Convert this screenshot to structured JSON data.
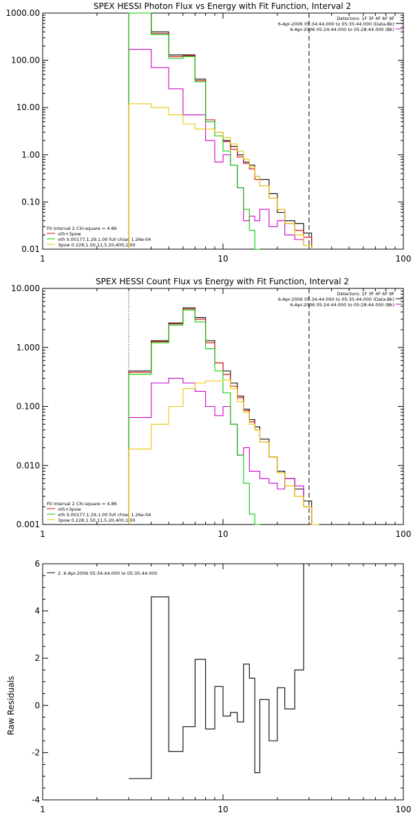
{
  "chart_data": [
    {
      "type": "line",
      "title": "SPEX HESSI Photon Flux vs Energy with Fit Function, Interval 2",
      "xscale": "log",
      "yscale": "log",
      "xlim": [
        1,
        100
      ],
      "ylim": [
        0.01,
        1000
      ],
      "x_ticks": [
        "1",
        "10",
        "100"
      ],
      "y_ticks": [
        "1000.00",
        "100.00",
        "10.00",
        "1.00",
        "0.10",
        "0.01"
      ],
      "info_lines": [
        "Detectors: 1F 3F 4F 6F 9F",
        "6-Apr-2006 05:34:44.000 to 05:35:44.000 (Data-Bk)",
        "6-Apr-2006 05:24:44.000 to 05:28:44.000 (Bk)"
      ],
      "legend_header": "Fit Interval 2   Chi-square = 4.86",
      "legend": [
        {
          "label": "vth+3pow",
          "color": "#d40000"
        },
        {
          "label": "vth 0.00177,1.29,1.00  full chian 1.26e-04",
          "color": "#00cc00"
        },
        {
          "label": "3pow 0.228,1.50,11,5.20,400,1.00",
          "color": "#e6c800"
        }
      ],
      "vlines": [
        {
          "x": 3,
          "style": "dotted"
        },
        {
          "x": 30,
          "style": "dashed"
        }
      ],
      "bin_edges": [
        3,
        4,
        5,
        6,
        7,
        8,
        9,
        10,
        11,
        12,
        13,
        14,
        15,
        16,
        18,
        20,
        22,
        25,
        28,
        31
      ],
      "series": [
        {
          "name": "Data-Bk",
          "color": "#000000",
          "values": [
            1000,
            400,
            130,
            130,
            40,
            5.5,
            3.0,
            2.0,
            1.5,
            1.0,
            0.7,
            0.6,
            0.35,
            0.3,
            0.15,
            0.06,
            0.04,
            0.035,
            0.022
          ]
        },
        {
          "name": "Bk",
          "color": "#cc00cc",
          "values": [
            170,
            70,
            25,
            7,
            7,
            2.0,
            0.7,
            1.0,
            0.6,
            0.2,
            0.04,
            0.05,
            0.04,
            0.07,
            0.03,
            0.04,
            0.02,
            0.016,
            0.012
          ]
        },
        {
          "name": "vth+3pow",
          "color": "#d40000",
          "values": [
            1000,
            370,
            120,
            125,
            37,
            5.5,
            3.0,
            1.9,
            1.3,
            0.9,
            0.65,
            0.5,
            0.3,
            0.22,
            0.12,
            0.07,
            0.035,
            0.025,
            0.018
          ]
        },
        {
          "name": "vth",
          "color": "#00cc00",
          "values": [
            1000,
            350,
            110,
            120,
            35,
            5.0,
            2.5,
            1.2,
            0.6,
            0.2,
            0.07,
            0.025,
            0.01
          ]
        },
        {
          "name": "3pow",
          "color": "#e6c800",
          "values": [
            12,
            10,
            7,
            4.5,
            3.5,
            3.5,
            3.0,
            2.3,
            1.7,
            1.2,
            0.8,
            0.55,
            0.35,
            0.22,
            0.12,
            0.07,
            0.035,
            0.02,
            0.012
          ]
        }
      ]
    },
    {
      "type": "line",
      "title": "SPEX HESSI Count Flux vs Energy with Fit Function, Interval 2",
      "xscale": "log",
      "yscale": "log",
      "xlim": [
        1,
        100
      ],
      "ylim": [
        0.001,
        10
      ],
      "x_ticks": [
        "1",
        "10",
        "100"
      ],
      "y_ticks": [
        "10.000",
        "1.000",
        "0.100",
        "0.010",
        "0.001"
      ],
      "info_lines": [
        "Detectors: 1F 3F 4F 6F 9F",
        "6-Apr-2006 05:34:44.000 to 05:35:44.000 (Data-Bk)",
        "6-Apr-2006 05:24:44.000 to 05:28:44.000 (Bk)"
      ],
      "legend_header": "Fit Interval 2   Chi-square = 4.86",
      "legend": [
        {
          "label": "vth+3pow",
          "color": "#d40000"
        },
        {
          "label": "vth 0.00177,1.29,1.00  full chian 1.26e-04",
          "color": "#00cc00"
        },
        {
          "label": "3pow 0.228,1.50,11,5.20,400,1.00",
          "color": "#e6c800"
        }
      ],
      "vlines": [
        {
          "x": 3,
          "style": "dotted"
        },
        {
          "x": 30,
          "style": "dashed"
        }
      ],
      "bin_edges": [
        3,
        4,
        5,
        6,
        7,
        8,
        9,
        10,
        11,
        12,
        13,
        14,
        15,
        16,
        18,
        20,
        22,
        25,
        28,
        31,
        34
      ],
      "series": [
        {
          "name": "Data-Bk",
          "color": "#000000",
          "values": [
            0.4,
            1.3,
            2.6,
            4.7,
            3.2,
            1.3,
            0.55,
            0.4,
            0.25,
            0.15,
            0.09,
            0.06,
            0.045,
            0.028,
            0.014,
            0.008,
            0.006,
            0.004,
            0.0025
          ]
        },
        {
          "name": "Bk",
          "color": "#cc00cc",
          "values": [
            0.065,
            0.25,
            0.3,
            0.25,
            0.18,
            0.1,
            0.07,
            0.1,
            0.05,
            0.015,
            0.02,
            0.008,
            0.008,
            0.006,
            0.005,
            0.004,
            0.006,
            0.0045,
            0.002
          ]
        },
        {
          "name": "vth+3pow",
          "color": "#d40000",
          "values": [
            0.38,
            1.25,
            2.5,
            4.5,
            3.0,
            1.2,
            0.55,
            0.35,
            0.22,
            0.14,
            0.085,
            0.055,
            0.04,
            0.025,
            0.014,
            0.0075,
            0.0045,
            0.003,
            0.002,
            0.001
          ]
        },
        {
          "name": "vth",
          "color": "#00cc00",
          "values": [
            0.35,
            1.2,
            2.4,
            4.3,
            2.7,
            0.95,
            0.4,
            0.17,
            0.05,
            0.015,
            0.005,
            0.0015,
            0.001
          ]
        },
        {
          "name": "3pow",
          "color": "#e6c800",
          "values": [
            0.019,
            0.05,
            0.1,
            0.2,
            0.25,
            0.27,
            0.27,
            0.28,
            0.2,
            0.12,
            0.08,
            0.05,
            0.04,
            0.025,
            0.014,
            0.0075,
            0.0045,
            0.003,
            0.002,
            0.001
          ]
        }
      ]
    },
    {
      "type": "line",
      "title": "",
      "xscale": "log",
      "yscale": "linear",
      "xlim": [
        1,
        100
      ],
      "ylim": [
        -4,
        6
      ],
      "ylabel": "Raw Residuals",
      "x_ticks": [
        "1",
        "10",
        "100"
      ],
      "y_ticks": [
        "6",
        "4",
        "2",
        "0",
        "-2",
        "-4"
      ],
      "legend": [
        {
          "label": "2. 6-Apr-2006 05:34:44.000 to 05:35:44.000",
          "color": "#000000"
        }
      ],
      "bin_edges": [
        3,
        4,
        5,
        6,
        7,
        8,
        9,
        10,
        11,
        12,
        13,
        14,
        15,
        16,
        18,
        20,
        22,
        25,
        28,
        31
      ],
      "series": [
        {
          "name": "residuals",
          "color": "#000000",
          "values": [
            -3.1,
            4.6,
            -1.95,
            -0.9,
            1.95,
            -1.0,
            0.8,
            -0.45,
            -0.3,
            -0.7,
            1.75,
            1.15,
            -2.85,
            0.25,
            -1.5,
            0.75,
            -0.15,
            1.5
          ]
        }
      ]
    }
  ]
}
